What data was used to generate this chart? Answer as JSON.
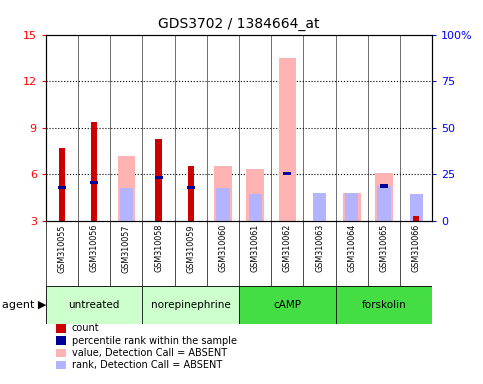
{
  "title": "GDS3702 / 1384664_at",
  "samples": [
    "GSM310055",
    "GSM310056",
    "GSM310057",
    "GSM310058",
    "GSM310059",
    "GSM310060",
    "GSM310061",
    "GSM310062",
    "GSM310063",
    "GSM310064",
    "GSM310065",
    "GSM310066"
  ],
  "count_values": [
    7.7,
    9.35,
    null,
    8.3,
    6.5,
    null,
    null,
    null,
    null,
    null,
    null,
    3.3
  ],
  "percentile_rank": [
    5.15,
    5.45,
    null,
    5.8,
    5.15,
    null,
    null,
    6.05,
    null,
    null,
    5.25,
    null
  ],
  "value_absent": [
    null,
    null,
    7.2,
    null,
    null,
    6.5,
    6.35,
    13.5,
    null,
    4.8,
    6.1,
    null
  ],
  "rank_absent": [
    null,
    null,
    5.1,
    null,
    null,
    5.1,
    4.7,
    null,
    4.8,
    4.8,
    5.25,
    4.7
  ],
  "ylim_left": [
    3,
    15
  ],
  "ylim_right": [
    0,
    100
  ],
  "yticks_left": [
    3,
    6,
    9,
    12,
    15
  ],
  "yticks_right": [
    0,
    25,
    50,
    75,
    100
  ],
  "ytick_labels_right": [
    "0",
    "25",
    "50",
    "75",
    "100%"
  ],
  "count_color": "#cc0000",
  "percentile_color": "#000099",
  "value_absent_color": "#ffb3b3",
  "rank_absent_color": "#b3b3ff",
  "agent_groups": [
    {
      "label": "untreated",
      "start": 0,
      "end": 2,
      "color": "#ccffcc"
    },
    {
      "label": "norepinephrine",
      "start": 3,
      "end": 5,
      "color": "#ccffcc"
    },
    {
      "label": "cAMP",
      "start": 6,
      "end": 8,
      "color": "#44dd44"
    },
    {
      "label": "forskolin",
      "start": 9,
      "end": 11,
      "color": "#44dd44"
    }
  ],
  "legend_items": [
    {
      "color": "#cc0000",
      "label": "count"
    },
    {
      "color": "#000099",
      "label": "percentile rank within the sample"
    },
    {
      "color": "#ffb3b3",
      "label": "value, Detection Call = ABSENT"
    },
    {
      "color": "#b3b3ff",
      "label": "rank, Detection Call = ABSENT"
    }
  ]
}
